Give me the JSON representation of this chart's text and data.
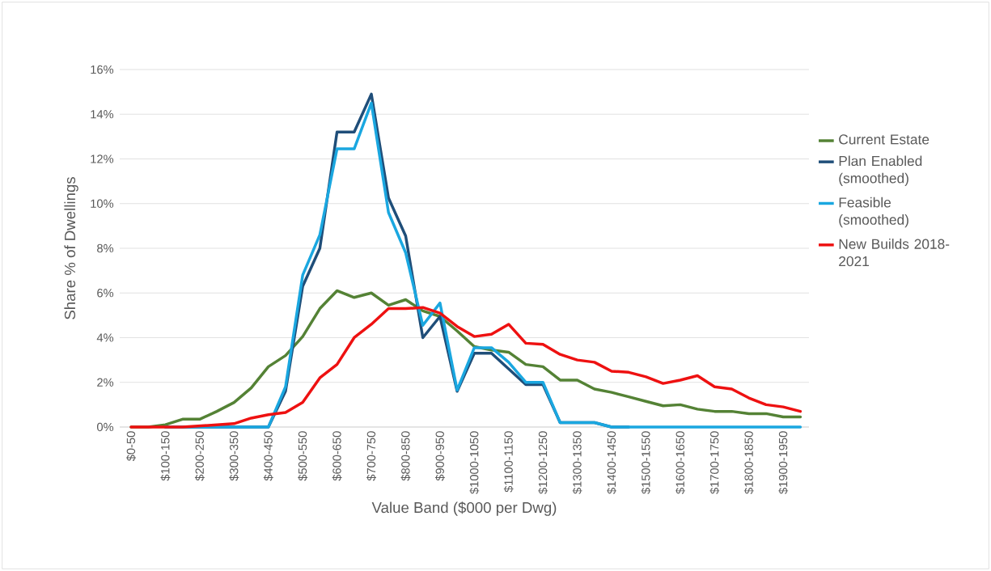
{
  "chart_data": {
    "type": "line",
    "xlabel": "Value Band ($000 per Dwg)",
    "ylabel": "Share % of Dwellings",
    "categories": [
      "$0-50",
      null,
      "$100-150",
      null,
      "$200-250",
      null,
      "$300-350",
      null,
      "$400-450",
      null,
      "$500-550",
      null,
      "$600-650",
      null,
      "$700-750",
      null,
      "$800-850",
      null,
      "$900-950",
      null,
      "$1000-1050",
      null,
      "$1100-1150",
      null,
      "$1200-1250",
      null,
      "$1300-1350",
      null,
      "$1400-1450",
      null,
      "$1500-1550",
      null,
      "$1600-1650",
      null,
      "$1700-1750",
      null,
      "$1800-1850",
      null,
      "$1900-1950",
      null
    ],
    "series": [
      {
        "name": "Current Estate",
        "color": "#548235",
        "values": [
          0,
          0,
          0.1,
          0.35,
          0.35,
          0.7,
          1.1,
          1.75,
          2.7,
          3.2,
          4.05,
          5.3,
          6.1,
          5.8,
          6.0,
          5.45,
          5.7,
          5.2,
          4.95,
          4.3,
          3.6,
          3.45,
          3.35,
          2.8,
          2.7,
          2.1,
          2.1,
          1.7,
          1.55,
          1.35,
          1.15,
          0.95,
          1.0,
          0.8,
          0.7,
          0.7,
          0.6,
          0.6,
          0.45,
          0.45
        ]
      },
      {
        "name": "Plan Enabled (smoothed)",
        "color": "#1f4e79",
        "values": [
          null,
          null,
          0,
          0,
          0,
          0,
          0,
          0,
          0,
          1.6,
          6.3,
          8.0,
          13.2,
          13.2,
          14.9,
          10.25,
          8.55,
          4.0,
          4.95,
          1.6,
          3.3,
          3.3,
          2.6,
          1.9,
          1.9,
          0.2,
          0.2,
          0.2,
          0,
          0,
          null,
          null,
          null,
          null,
          null,
          null,
          null,
          null,
          null,
          null
        ]
      },
      {
        "name": "Feasible (smoothed)",
        "color": "#1aa7e0",
        "values": [
          null,
          null,
          0,
          0,
          0,
          0,
          0,
          0,
          0,
          1.8,
          6.8,
          8.6,
          12.45,
          12.45,
          14.5,
          9.6,
          7.8,
          4.55,
          5.55,
          1.65,
          3.55,
          3.55,
          2.9,
          2.0,
          2.0,
          0.2,
          0.2,
          0.2,
          0,
          0,
          0,
          0,
          0,
          0,
          0,
          0,
          0,
          0,
          0,
          0
        ]
      },
      {
        "name": "New Builds 2018-2021",
        "color": "#ee1111",
        "values": [
          0,
          0,
          0,
          0,
          0.05,
          0.1,
          0.15,
          0.4,
          0.55,
          0.65,
          1.1,
          2.2,
          2.8,
          4.0,
          4.6,
          5.3,
          5.3,
          5.35,
          5.1,
          4.5,
          4.05,
          4.15,
          4.6,
          3.75,
          3.7,
          3.25,
          3.0,
          2.9,
          2.5,
          2.45,
          2.25,
          1.95,
          2.1,
          2.3,
          1.8,
          1.7,
          1.3,
          1.0,
          0.9,
          0.7
        ]
      }
    ],
    "ylim": [
      0,
      16
    ],
    "yticks": [
      {
        "value": 0,
        "label": "0%"
      },
      {
        "value": 2,
        "label": "2%"
      },
      {
        "value": 4,
        "label": "4%"
      },
      {
        "value": 6,
        "label": "6%"
      },
      {
        "value": 8,
        "label": "8%"
      },
      {
        "value": 10,
        "label": "10%"
      },
      {
        "value": 12,
        "label": "12%"
      },
      {
        "value": 14,
        "label": "14%"
      },
      {
        "value": 16,
        "label": "16%"
      }
    ],
    "grid": "y",
    "legend": "right",
    "marker": "none",
    "line_style": "solid"
  }
}
